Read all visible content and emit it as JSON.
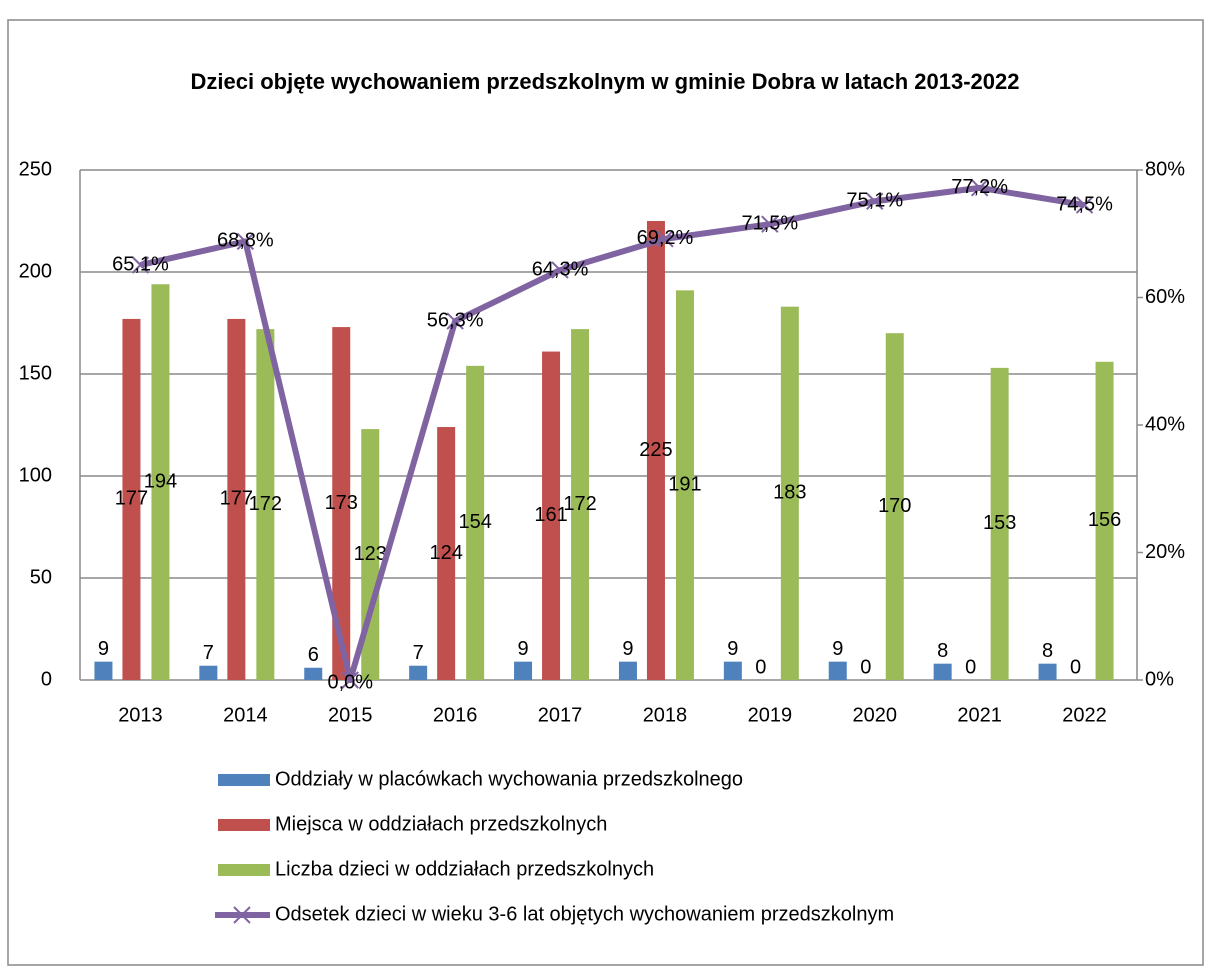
{
  "chart_data": {
    "type": "bar-line",
    "title": "Dzieci objęte wychowaniem przedszkolnym w gminie Dobra w latach 2013-2022",
    "categories": [
      "2013",
      "2014",
      "2015",
      "2016",
      "2017",
      "2018",
      "2019",
      "2020",
      "2021",
      "2022"
    ],
    "series": [
      {
        "name": "Oddziały w placówkach wychowania przedszkolnego",
        "color": "#4f81bd",
        "type": "bar",
        "values": [
          9,
          7,
          6,
          7,
          9,
          9,
          9,
          9,
          8,
          8
        ]
      },
      {
        "name": "Miejsca w oddziałach przedszkolnych",
        "color": "#c0504d",
        "type": "bar",
        "values": [
          177,
          177,
          173,
          124,
          161,
          225,
          0,
          0,
          0,
          0
        ]
      },
      {
        "name": "Liczba dzieci w oddziałach przedszkolnych",
        "color": "#9bbb59",
        "type": "bar",
        "values": [
          194,
          172,
          123,
          154,
          172,
          191,
          183,
          170,
          153,
          156
        ]
      },
      {
        "name": "Odsetek dzieci w wieku 3-6 lat objętych wychowaniem przedszkolnym",
        "color": "#8064a2",
        "type": "line",
        "axis": "y2",
        "values": [
          65.1,
          68.8,
          0,
          56.3,
          64.3,
          69.2,
          71.5,
          75.1,
          77.2,
          74.5
        ],
        "value_labels": [
          "65,1%",
          "68,8%",
          "0,0%",
          "56,3%",
          "64,3%",
          "69,2%",
          "71,5%",
          "75,1%",
          "77,2%",
          "74,5%"
        ]
      }
    ],
    "ylim": [
      0,
      250
    ],
    "yticks": [
      0,
      50,
      100,
      150,
      200,
      250
    ],
    "y2lim": [
      0,
      80
    ],
    "y2ticks": [
      {
        "value": 0,
        "label": "0%"
      },
      {
        "value": 20,
        "label": "20%"
      },
      {
        "value": 40,
        "label": "40%"
      },
      {
        "value": 60,
        "label": "60%"
      },
      {
        "value": 80,
        "label": "80%"
      }
    ],
    "grid": true,
    "legend": "bottom"
  }
}
